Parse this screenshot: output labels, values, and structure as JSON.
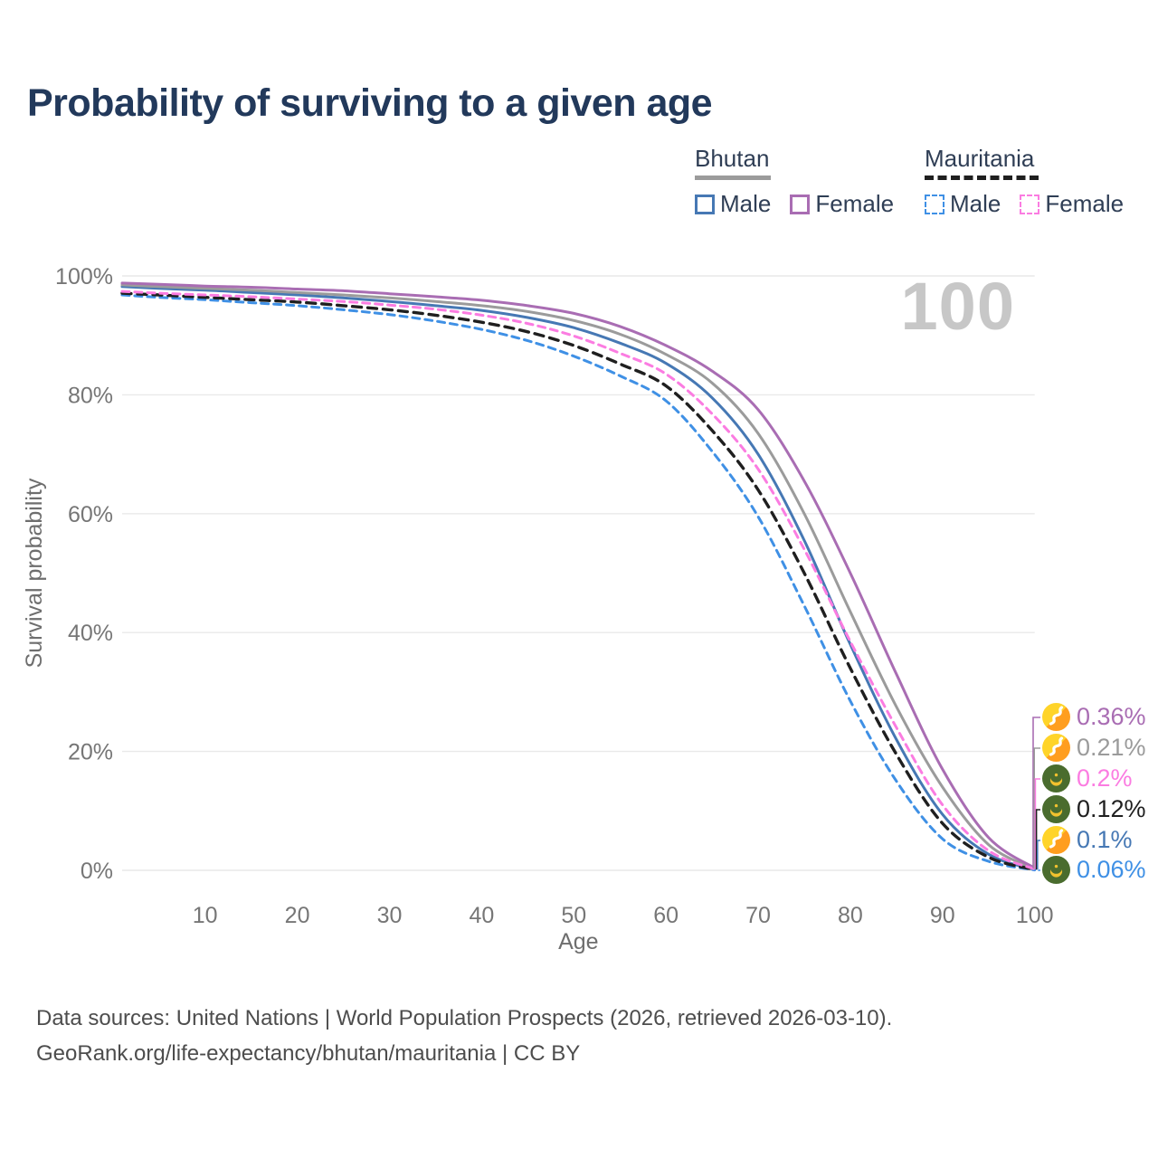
{
  "title": "Probability of surviving to a given age",
  "watermark": "100",
  "legend": {
    "groups": [
      {
        "name": "Bhutan",
        "dashed": false,
        "underline_color": "#9b9b9b",
        "items": [
          {
            "label": "Male",
            "color": "#4678b4",
            "dashed": false
          },
          {
            "label": "Female",
            "color": "#a96db3",
            "dashed": false
          }
        ]
      },
      {
        "name": "Mauritania",
        "dashed": true,
        "underline_color": "#1f1f1f",
        "items": [
          {
            "label": "Male",
            "color": "#3f90e5",
            "dashed": true
          },
          {
            "label": "Female",
            "color": "#fb7ce1",
            "dashed": true
          }
        ]
      }
    ]
  },
  "chart_data": {
    "type": "line",
    "xlabel": "Age",
    "ylabel": "Survival probability",
    "xlim": [
      1,
      100
    ],
    "ylim": [
      0,
      100
    ],
    "x_ticks": [
      10,
      20,
      30,
      40,
      50,
      60,
      70,
      80,
      90,
      100
    ],
    "y_ticks": [
      {
        "value": 0,
        "label": "0%"
      },
      {
        "value": 20,
        "label": "20%"
      },
      {
        "value": 40,
        "label": "40%"
      },
      {
        "value": 60,
        "label": "60%"
      },
      {
        "value": 80,
        "label": "80%"
      },
      {
        "value": 100,
        "label": "100%"
      }
    ],
    "grid": true,
    "x": [
      1,
      5,
      10,
      15,
      20,
      25,
      30,
      35,
      40,
      45,
      50,
      55,
      60,
      65,
      70,
      75,
      80,
      85,
      90,
      95,
      100
    ],
    "series": [
      {
        "name": "Bhutan Female",
        "country": "Bhutan",
        "sex": "Female",
        "flag": "bhutan",
        "color": "#a96db3",
        "dashed": false,
        "end_label": "0.36%",
        "values": [
          98.8,
          98.6,
          98.3,
          98.1,
          97.8,
          97.5,
          97.0,
          96.5,
          95.9,
          95.0,
          93.7,
          91.5,
          88.3,
          84.0,
          77.5,
          65.5,
          50.0,
          33.0,
          17.0,
          5.5,
          0.36
        ]
      },
      {
        "name": "Bhutan",
        "country": "Bhutan",
        "sex": "Both",
        "flag": "bhutan",
        "color": "#9b9b9b",
        "dashed": false,
        "end_label": "0.21%",
        "values": [
          98.5,
          98.2,
          97.9,
          97.6,
          97.2,
          96.8,
          96.3,
          95.7,
          95.0,
          94.0,
          92.5,
          90.2,
          86.8,
          82.0,
          73.5,
          60.0,
          43.5,
          27.5,
          14.0,
          4.3,
          0.21
        ]
      },
      {
        "name": "Mauritania Female",
        "country": "Mauritania",
        "sex": "Female",
        "flag": "mauritania",
        "color": "#fb7ce1",
        "dashed": true,
        "end_label": "0.2%",
        "values": [
          97.4,
          97.1,
          96.8,
          96.5,
          96.1,
          95.7,
          95.1,
          94.4,
          93.4,
          92.0,
          89.9,
          87.0,
          83.5,
          76.8,
          67.5,
          54.0,
          38.5,
          24.0,
          11.0,
          3.3,
          0.2
        ]
      },
      {
        "name": "Mauritania",
        "country": "Mauritania",
        "sex": "Both",
        "flag": "mauritania",
        "color": "#1f1f1f",
        "dashed": true,
        "end_label": "0.12%",
        "values": [
          97.1,
          96.8,
          96.4,
          96.0,
          95.6,
          95.0,
          94.3,
          93.4,
          92.2,
          90.6,
          88.3,
          85.2,
          81.5,
          74.0,
          64.0,
          50.0,
          34.0,
          19.5,
          7.9,
          2.2,
          0.12
        ]
      },
      {
        "name": "Bhutan Male",
        "country": "Bhutan",
        "sex": "Male",
        "flag": "bhutan",
        "color": "#4678b4",
        "dashed": false,
        "end_label": "0.1%",
        "values": [
          98.2,
          97.9,
          97.6,
          97.2,
          96.8,
          96.3,
          95.7,
          95.0,
          94.2,
          93.0,
          91.3,
          88.7,
          85.3,
          79.5,
          70.0,
          55.5,
          38.0,
          22.0,
          9.4,
          2.7,
          0.1
        ]
      },
      {
        "name": "Mauritania Male",
        "country": "Mauritania",
        "sex": "Male",
        "flag": "mauritania",
        "color": "#3f90e5",
        "dashed": true,
        "end_label": "0.06%",
        "values": [
          96.8,
          96.4,
          96.0,
          95.5,
          95.0,
          94.3,
          93.5,
          92.4,
          91.0,
          89.1,
          86.5,
          83.2,
          79.0,
          70.5,
          59.5,
          44.5,
          28.5,
          15.0,
          5.3,
          1.5,
          0.06
        ]
      }
    ],
    "legend_position": "top-right"
  },
  "footer": {
    "line1": "Data sources: United Nations | World Population Prospects (2026, retrieved 2026-03-10).",
    "line2": "GeoRank.org/life-expectancy/bhutan/mauritania | CC BY"
  }
}
